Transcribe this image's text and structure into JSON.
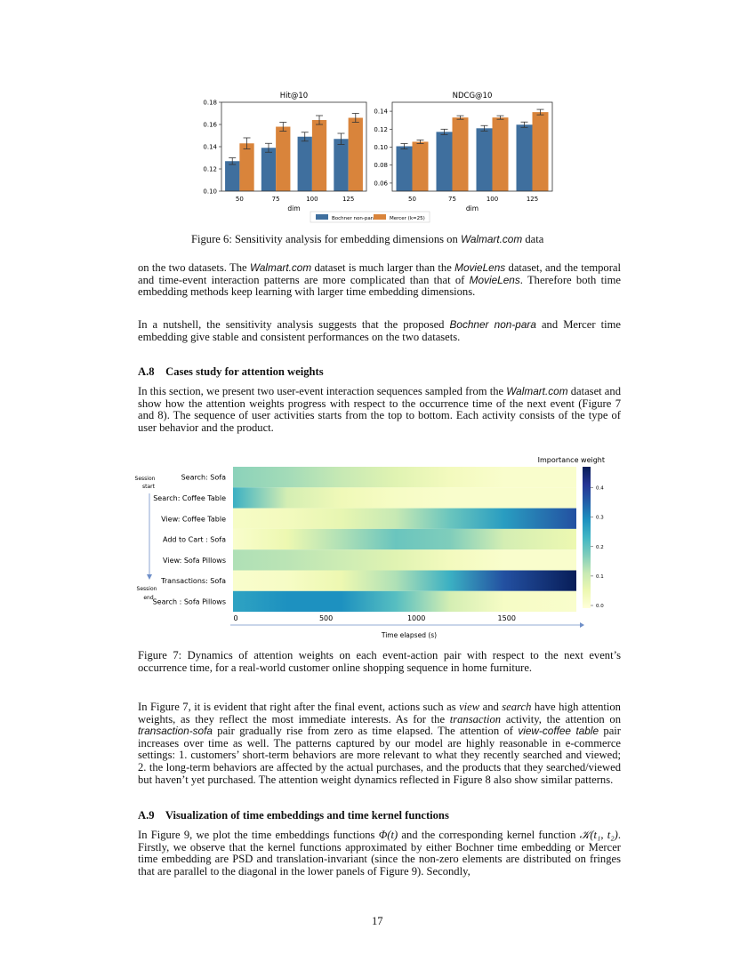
{
  "figure6": {
    "caption": [
      {
        "t": "Figure 6: Sensitivity analysis for embedding dimensions on "
      },
      {
        "t": "Walmart.com",
        "s": "sf"
      },
      {
        "t": " data"
      }
    ],
    "legend": [
      "Bochner non-para",
      "Mercer (k=25)"
    ],
    "colors": {
      "bochner": "#3f6f9e",
      "mercer": "#d9843b"
    }
  },
  "chart_data": [
    {
      "type": "bar",
      "title": "Hit@10",
      "xlabel": "dim",
      "ylabel": "",
      "categories": [
        "50",
        "75",
        "100",
        "125"
      ],
      "ylim": [
        0.1,
        0.18
      ],
      "yticks": [
        "0.10",
        "0.12",
        "0.14",
        "0.16",
        "0.18"
      ],
      "series": [
        {
          "name": "Bochner non-para",
          "values": [
            0.127,
            0.139,
            0.149,
            0.147
          ],
          "errors": [
            0.003,
            0.004,
            0.004,
            0.005
          ]
        },
        {
          "name": "Mercer (k=25)",
          "values": [
            0.143,
            0.158,
            0.164,
            0.166
          ],
          "errors": [
            0.005,
            0.004,
            0.004,
            0.004
          ]
        }
      ],
      "legend": "bottom"
    },
    {
      "type": "bar",
      "title": "NDCG@10",
      "xlabel": "dim",
      "ylabel": "",
      "categories": [
        "50",
        "75",
        "100",
        "125"
      ],
      "ylim": [
        0.051,
        0.15
      ],
      "yticks": [
        "0.06",
        "0.08",
        "0.10",
        "0.12",
        "0.14"
      ],
      "series": [
        {
          "name": "Bochner non-para",
          "values": [
            0.101,
            0.117,
            0.121,
            0.125
          ],
          "errors": [
            0.003,
            0.003,
            0.003,
            0.003
          ]
        },
        {
          "name": "Mercer (k=25)",
          "values": [
            0.106,
            0.133,
            0.133,
            0.139
          ],
          "errors": [
            0.002,
            0.002,
            0.002,
            0.003
          ]
        }
      ],
      "legend": "bottom"
    },
    {
      "type": "heatmap",
      "title": "Importance weight",
      "xlabel": "Time elapsed (s)",
      "xlim": [
        0,
        1900
      ],
      "xticks": [
        "0",
        "500",
        "1000",
        "1500"
      ],
      "rows": [
        "Search: Sofa",
        "Search: Coffee Table",
        "View: Coffee Table",
        "Add to Cart : Sofa",
        "View: Sofa Pillows",
        "Transactions: Sofa",
        "Search : Sofa Pillows"
      ],
      "sample_times": [
        0,
        300,
        600,
        900,
        1200,
        1500,
        1900
      ],
      "values": [
        [
          0.17,
          0.15,
          0.12,
          0.08,
          0.04,
          0.02,
          0.02
        ],
        [
          0.25,
          0.1,
          0.05,
          0.03,
          0.02,
          0.02,
          0.02
        ],
        [
          0.03,
          0.04,
          0.07,
          0.12,
          0.2,
          0.28,
          0.38
        ],
        [
          0.02,
          0.06,
          0.14,
          0.2,
          0.18,
          0.1,
          0.06
        ],
        [
          0.14,
          0.13,
          0.11,
          0.08,
          0.04,
          0.02,
          0.02
        ],
        [
          0.02,
          0.03,
          0.06,
          0.14,
          0.25,
          0.38,
          0.48
        ],
        [
          0.27,
          0.3,
          0.3,
          0.22,
          0.1,
          0.03,
          0.02
        ]
      ],
      "colorbar": {
        "range": [
          0,
          0.48
        ],
        "ticks": [
          "0.0",
          "0.1",
          "0.2",
          "0.3",
          "0.4"
        ],
        "colormap": "YlGnBu"
      },
      "side_labels": {
        "start": "Session start",
        "end": "Session end"
      }
    }
  ],
  "figure7": {
    "caption": "Figure 7: Dynamics of attention weights on each event-action pair with respect to the next event’s occurrence time, for a real-world customer online shopping sequence in home furniture."
  },
  "p1": [
    {
      "t": "on the two datasets. The "
    },
    {
      "t": "Walmart.com",
      "s": "sf"
    },
    {
      "t": " dataset is much larger than the "
    },
    {
      "t": "MovieLens",
      "s": "sf"
    },
    {
      "t": " dataset, and the temporal and time-event interaction patterns are more complicated than that of "
    },
    {
      "t": "MovieLens",
      "s": "sf"
    },
    {
      "t": ". Therefore both time embedding methods keep learning with larger time embedding dimensions."
    }
  ],
  "p2": [
    {
      "t": "In a nutshell, the sensitivity analysis suggests that the proposed "
    },
    {
      "t": "Bochner non-para",
      "s": "sf"
    },
    {
      "t": " and Mercer time embedding give stable and consistent performances on the two datasets."
    }
  ],
  "h1": "A.8    Cases study for attention weights",
  "p3": [
    {
      "t": "In this section, we present two user-event interaction sequences sampled from the "
    },
    {
      "t": "Walmart.com",
      "s": "sf"
    },
    {
      "t": " dataset and show how the attention weights progress with respect to the occurrence time of the next event (Figure 7 and 8). The sequence of user activities starts from the top to bottom. Each activity consists of the type of user behavior and the product."
    }
  ],
  "p4": [
    {
      "t": "In Figure 7, it is evident that right after the final event, actions such as "
    },
    {
      "t": "view",
      "s": "it"
    },
    {
      "t": " and "
    },
    {
      "t": "search",
      "s": "it"
    },
    {
      "t": " have high attention weights, as they reflect the most immediate interests. As for the "
    },
    {
      "t": "transaction",
      "s": "it"
    },
    {
      "t": " activity, the attention on "
    },
    {
      "t": "transaction-sofa",
      "s": "sf"
    },
    {
      "t": " pair gradually rise from zero as time elapsed. The attention of "
    },
    {
      "t": "view-coffee table",
      "s": "sf"
    },
    {
      "t": " pair increases over time as well. The patterns captured by our model are highly reasonable in e-commerce settings: 1. customers’ short-term behaviors are more relevant to what they recently searched and viewed; 2. the long-term behaviors are affected by the actual purchases, and the products that they searched/viewed but haven’t yet purchased. The attention weight dynamics reflected in Figure 8 also show similar patterns."
    }
  ],
  "h2": "A.9    Visualization of time embeddings and time kernel functions",
  "p5": [
    {
      "t": "In Figure 9, we plot the time embeddings functions "
    },
    {
      "t": "Φ(t)",
      "s": "it"
    },
    {
      "t": " and the corresponding kernel function "
    },
    {
      "t": "𝒦(t₁, t₂)",
      "s": "it"
    },
    {
      "t": ". Firstly, we observe that the kernel functions approximated by either Bochner time embedding or Mercer time embedding are PSD and translation-invariant (since the non-zero elements are distributed on fringes that are parallel to the diagonal in the lower panels of Figure 9). Secondly,"
    }
  ],
  "page_number": "17"
}
